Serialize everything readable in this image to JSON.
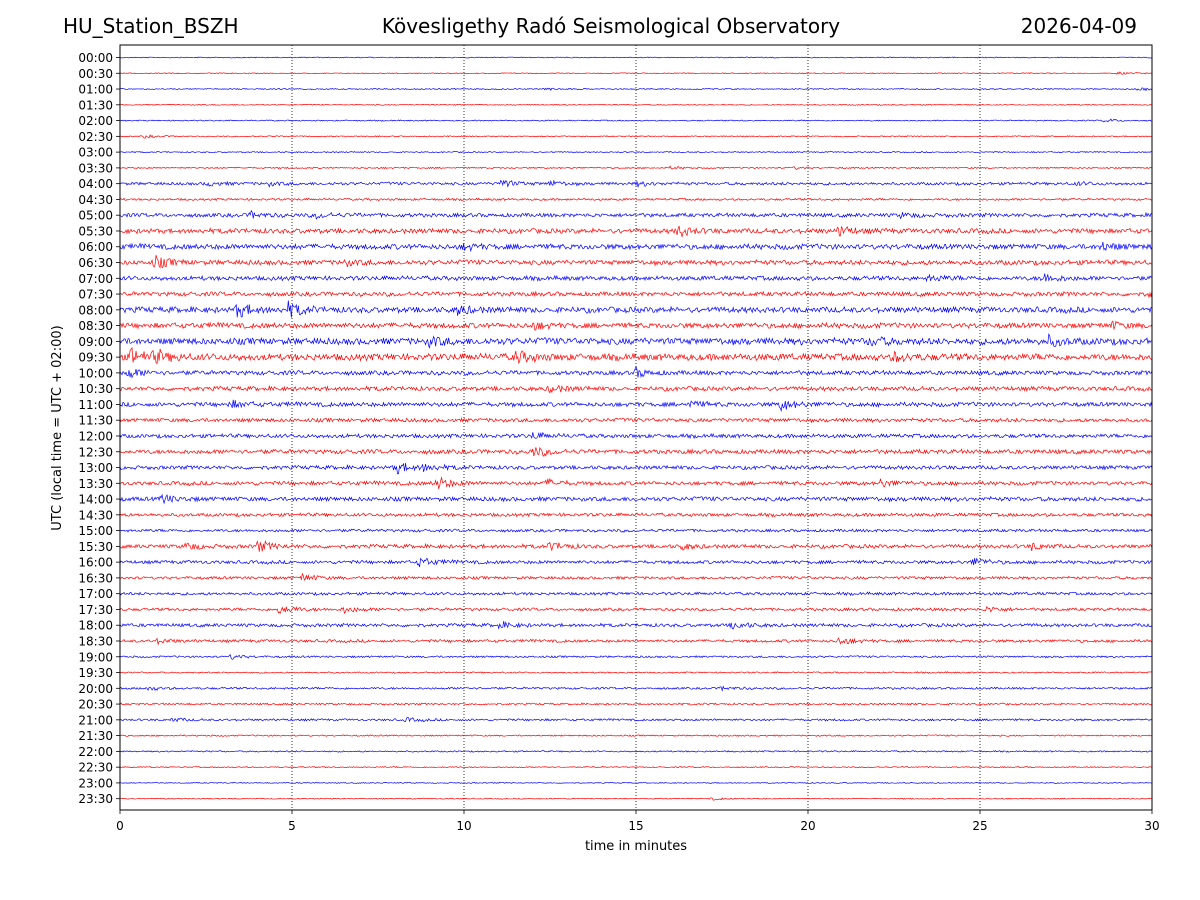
{
  "titles": {
    "left": "HU_Station_BSZH",
    "center": "Kövesligethy Radó Seismological Observatory",
    "right": "2026-04-09"
  },
  "chart_data": {
    "type": "line",
    "xlabel": "time in minutes",
    "ylabel": "UTC (local time = UTC + 02:00)",
    "xlim": [
      0,
      30
    ],
    "xticks": [
      0,
      5,
      10,
      15,
      20,
      25,
      30
    ],
    "vertical_gridlines": [
      5,
      10,
      15,
      20,
      25
    ],
    "grid_style": "dotted",
    "trace_colors": [
      "#0000ff",
      "#ff0000"
    ],
    "rows": [
      {
        "label": "00:00",
        "activity": 0.1,
        "events": []
      },
      {
        "label": "00:30",
        "activity": 0.1,
        "events": [
          {
            "t": 29.0,
            "amp": 0.25
          }
        ]
      },
      {
        "label": "01:00",
        "activity": 0.12,
        "events": [
          {
            "t": 12.3,
            "amp": 0.3
          },
          {
            "t": 29.6,
            "amp": 0.35
          }
        ]
      },
      {
        "label": "01:30",
        "activity": 0.1,
        "events": []
      },
      {
        "label": "02:00",
        "activity": 0.12,
        "events": [
          {
            "t": 28.6,
            "amp": 0.4
          }
        ]
      },
      {
        "label": "02:30",
        "activity": 0.12,
        "events": [
          {
            "t": 0.7,
            "amp": 0.35
          }
        ]
      },
      {
        "label": "03:00",
        "activity": 0.12,
        "events": []
      },
      {
        "label": "03:30",
        "activity": 0.15,
        "events": [
          {
            "t": 16.0,
            "amp": 0.3
          },
          {
            "t": 19.5,
            "amp": 0.3
          }
        ]
      },
      {
        "label": "04:00",
        "activity": 0.3,
        "events": [
          {
            "t": 2.5,
            "amp": 0.5
          },
          {
            "t": 4.3,
            "amp": 0.4
          },
          {
            "t": 11.0,
            "amp": 1.0
          },
          {
            "t": 12.5,
            "amp": 0.5
          },
          {
            "t": 15.0,
            "amp": 0.5
          },
          {
            "t": 27.8,
            "amp": 0.3
          }
        ]
      },
      {
        "label": "04:30",
        "activity": 0.22,
        "events": []
      },
      {
        "label": "05:00",
        "activity": 0.4,
        "events": [
          {
            "t": 3.8,
            "amp": 0.6
          },
          {
            "t": 5.7,
            "amp": 0.5
          },
          {
            "t": 22.7,
            "amp": 0.5
          }
        ]
      },
      {
        "label": "05:30",
        "activity": 0.5,
        "events": [
          {
            "t": 16.2,
            "amp": 1.2
          },
          {
            "t": 20.9,
            "amp": 1.0
          }
        ]
      },
      {
        "label": "06:00",
        "activity": 0.55,
        "events": [
          {
            "t": 10.0,
            "amp": 0.6
          },
          {
            "t": 28.5,
            "amp": 1.0
          }
        ]
      },
      {
        "label": "06:30",
        "activity": 0.5,
        "events": [
          {
            "t": 1.0,
            "amp": 1.3
          },
          {
            "t": 6.5,
            "amp": 0.6
          }
        ]
      },
      {
        "label": "07:00",
        "activity": 0.45,
        "events": [
          {
            "t": 23.5,
            "amp": 0.7
          },
          {
            "t": 26.8,
            "amp": 1.1
          }
        ]
      },
      {
        "label": "07:30",
        "activity": 0.45,
        "events": [
          {
            "t": 29.9,
            "amp": 0.9
          }
        ]
      },
      {
        "label": "08:00",
        "activity": 0.6,
        "events": [
          {
            "t": 3.4,
            "amp": 1.5
          },
          {
            "t": 4.9,
            "amp": 1.4
          },
          {
            "t": 9.8,
            "amp": 0.9
          }
        ]
      },
      {
        "label": "08:30",
        "activity": 0.55,
        "events": [
          {
            "t": 12.0,
            "amp": 0.7
          },
          {
            "t": 28.8,
            "amp": 0.6
          }
        ]
      },
      {
        "label": "09:00",
        "activity": 0.7,
        "events": [
          {
            "t": 9.0,
            "amp": 1.0
          },
          {
            "t": 21.8,
            "amp": 1.0
          },
          {
            "t": 27.0,
            "amp": 0.9
          }
        ]
      },
      {
        "label": "09:30",
        "activity": 0.7,
        "events": [
          {
            "t": 0.3,
            "amp": 1.6
          },
          {
            "t": 1.0,
            "amp": 1.2
          },
          {
            "t": 11.5,
            "amp": 1.2
          },
          {
            "t": 22.5,
            "amp": 1.0
          }
        ]
      },
      {
        "label": "10:00",
        "activity": 0.45,
        "events": [
          {
            "t": 0.2,
            "amp": 1.1
          },
          {
            "t": 15.0,
            "amp": 0.9
          }
        ]
      },
      {
        "label": "10:30",
        "activity": 0.45,
        "events": [
          {
            "t": 12.5,
            "amp": 0.8
          }
        ]
      },
      {
        "label": "11:00",
        "activity": 0.45,
        "events": [
          {
            "t": 3.2,
            "amp": 0.7
          },
          {
            "t": 16.5,
            "amp": 0.7
          },
          {
            "t": 19.2,
            "amp": 1.1
          }
        ]
      },
      {
        "label": "11:30",
        "activity": 0.4,
        "events": []
      },
      {
        "label": "12:00",
        "activity": 0.4,
        "events": [
          {
            "t": 12.0,
            "amp": 0.6
          }
        ]
      },
      {
        "label": "12:30",
        "activity": 0.45,
        "events": [
          {
            "t": 12.0,
            "amp": 1.0
          }
        ]
      },
      {
        "label": "13:00",
        "activity": 0.4,
        "events": [
          {
            "t": 8.0,
            "amp": 1.3
          },
          {
            "t": 8.8,
            "amp": 0.7
          }
        ]
      },
      {
        "label": "13:30",
        "activity": 0.4,
        "events": [
          {
            "t": 9.2,
            "amp": 1.4
          },
          {
            "t": 12.4,
            "amp": 0.7
          },
          {
            "t": 22.1,
            "amp": 0.7
          }
        ]
      },
      {
        "label": "14:00",
        "activity": 0.45,
        "events": [
          {
            "t": 1.2,
            "amp": 0.9
          }
        ]
      },
      {
        "label": "14:30",
        "activity": 0.35,
        "events": []
      },
      {
        "label": "15:00",
        "activity": 0.3,
        "events": []
      },
      {
        "label": "15:30",
        "activity": 0.4,
        "events": [
          {
            "t": 1.9,
            "amp": 0.8
          },
          {
            "t": 4.0,
            "amp": 1.2
          },
          {
            "t": 12.5,
            "amp": 0.9
          },
          {
            "t": 16.3,
            "amp": 0.6
          },
          {
            "t": 26.5,
            "amp": 0.7
          }
        ]
      },
      {
        "label": "16:00",
        "activity": 0.35,
        "events": [
          {
            "t": 8.7,
            "amp": 0.9
          },
          {
            "t": 24.8,
            "amp": 0.8
          }
        ]
      },
      {
        "label": "16:30",
        "activity": 0.3,
        "events": [
          {
            "t": 5.3,
            "amp": 0.7
          }
        ]
      },
      {
        "label": "17:00",
        "activity": 0.3,
        "events": []
      },
      {
        "label": "17:30",
        "activity": 0.3,
        "events": [
          {
            "t": 4.6,
            "amp": 1.4
          },
          {
            "t": 6.5,
            "amp": 0.7
          },
          {
            "t": 25.2,
            "amp": 0.6
          }
        ]
      },
      {
        "label": "18:00",
        "activity": 0.35,
        "events": [
          {
            "t": 11.0,
            "amp": 0.6
          },
          {
            "t": 17.8,
            "amp": 0.8
          }
        ]
      },
      {
        "label": "18:30",
        "activity": 0.3,
        "events": [
          {
            "t": 1.0,
            "amp": 0.6
          },
          {
            "t": 20.9,
            "amp": 0.8
          }
        ]
      },
      {
        "label": "19:00",
        "activity": 0.2,
        "events": [
          {
            "t": 3.2,
            "amp": 0.5
          }
        ]
      },
      {
        "label": "19:30",
        "activity": 0.15,
        "events": []
      },
      {
        "label": "20:00",
        "activity": 0.22,
        "events": [
          {
            "t": 0.8,
            "amp": 0.4
          },
          {
            "t": 17.5,
            "amp": 0.4
          }
        ]
      },
      {
        "label": "20:30",
        "activity": 0.2,
        "events": []
      },
      {
        "label": "21:00",
        "activity": 0.22,
        "events": [
          {
            "t": 1.5,
            "amp": 0.4
          },
          {
            "t": 8.3,
            "amp": 0.4
          }
        ]
      },
      {
        "label": "21:30",
        "activity": 0.15,
        "events": []
      },
      {
        "label": "22:00",
        "activity": 0.15,
        "events": []
      },
      {
        "label": "22:30",
        "activity": 0.12,
        "events": []
      },
      {
        "label": "23:00",
        "activity": 0.1,
        "events": []
      },
      {
        "label": "23:30",
        "activity": 0.1,
        "events": [
          {
            "t": 17.2,
            "amp": 0.25
          }
        ]
      }
    ]
  }
}
